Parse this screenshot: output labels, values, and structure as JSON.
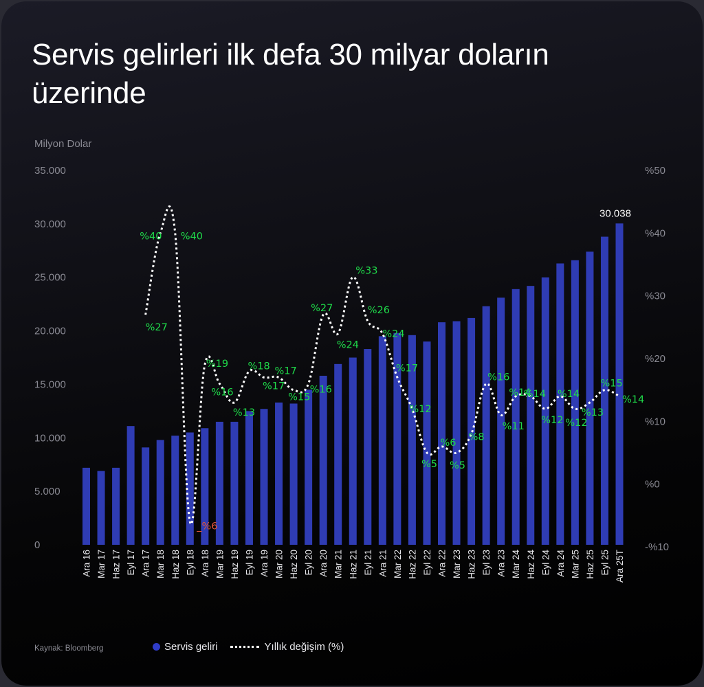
{
  "title": "Servis gelirleri ilk defa 30 milyar doların üzerinde",
  "unit_label": "Milyon Dolar",
  "source": "Kaynak: Bloomberg",
  "legend": {
    "bar_label": "Servis geliri",
    "line_label": "Yıllık değişim (%)"
  },
  "colors": {
    "bar": "#2f3cb4",
    "line": "#ffffff",
    "positive_label": "#1fdc4a",
    "negative_label": "#e0553a",
    "axis_text": "#8a8a93"
  },
  "chart_data": {
    "type": "bar+line",
    "title": "Servis gelirleri ilk defa 30 milyar doların üzerinde",
    "ylabel": "Milyon Dolar",
    "y2label": "Yıllık değişim (%)",
    "ylim": [
      0,
      35000
    ],
    "y2lim": [
      -10,
      50
    ],
    "y_ticks": [
      "0",
      "5.000",
      "10.000",
      "15.000",
      "20.000",
      "25.000",
      "30.000",
      "35.000"
    ],
    "y2_ticks": [
      "-%10",
      "%0",
      "%10",
      "%20",
      "%30",
      "%40",
      "%50"
    ],
    "grid": false,
    "legend_position": "bottom",
    "categories": [
      "Ara 16",
      "Mar 17",
      "Haz 17",
      "Eyl 17",
      "Ara 17",
      "Mar 18",
      "Haz 18",
      "Eyl 18",
      "Ara 18",
      "Mar 19",
      "Haz 19",
      "Eyl 19",
      "Ara 19",
      "Mar 20",
      "Haz 20",
      "Eyl 20",
      "Ara 20",
      "Mar 21",
      "Haz 21",
      "Eyl 21",
      "Ara 21",
      "Mar 22",
      "Haz 22",
      "Eyl 22",
      "Ara 22",
      "Mar 23",
      "Haz 23",
      "Eyl 23",
      "Ara 23",
      "Mar 24",
      "Haz 24",
      "Eyl 24",
      "Ara 24",
      "Mar 25",
      "Haz 25",
      "Eyl 25",
      "Ara 25T"
    ],
    "series": [
      {
        "name": "Servis geliri",
        "type": "bar",
        "axis": "left",
        "values": [
          7200,
          6900,
          7200,
          11100,
          9100,
          9800,
          10200,
          10500,
          10900,
          11500,
          11500,
          12500,
          12700,
          13300,
          13200,
          14500,
          15800,
          16900,
          17500,
          18300,
          19500,
          19800,
          19600,
          19000,
          20800,
          20900,
          21200,
          22300,
          23100,
          23900,
          24200,
          25000,
          26300,
          26600,
          27400,
          28800,
          30038
        ]
      },
      {
        "name": "Yıllık değişim (%)",
        "type": "line",
        "axis": "right",
        "values": [
          null,
          null,
          null,
          null,
          27,
          40,
          40,
          -6,
          19,
          16,
          13,
          18,
          17,
          17,
          15,
          16,
          27,
          24,
          33,
          26,
          24,
          17,
          12,
          5,
          6,
          5,
          8,
          16,
          11,
          14,
          14,
          12,
          14,
          12,
          13,
          15,
          14
        ]
      }
    ],
    "annotations": [
      {
        "category": "Ara 25T",
        "text": "30.038"
      }
    ]
  }
}
